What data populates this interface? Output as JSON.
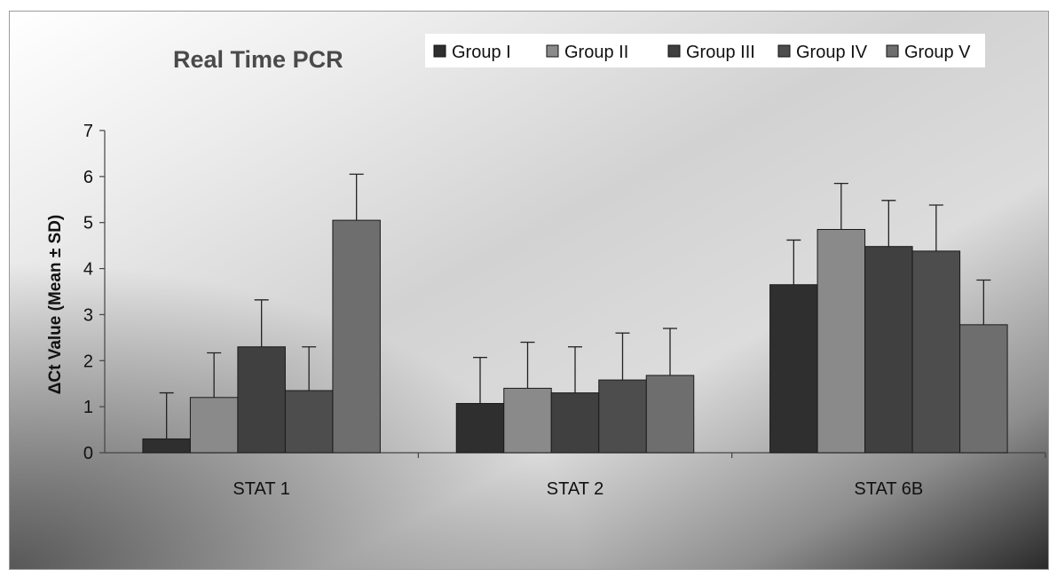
{
  "chart_data": {
    "type": "bar",
    "title": "Real Time PCR",
    "ylabel": "ΔCt Value (Mean ± SD)",
    "xlabel": "",
    "categories": [
      "STAT 1",
      "STAT 2",
      "STAT 6B"
    ],
    "ylim": [
      0,
      7
    ],
    "yticks": [
      0,
      1,
      2,
      3,
      4,
      5,
      6,
      7
    ],
    "grid": false,
    "legend_position": "top-right",
    "series": [
      {
        "name": "Group I",
        "color": "#2f2f2f",
        "values": [
          0.3,
          1.07,
          3.65
        ],
        "errors": [
          1.0,
          1.0,
          0.97
        ]
      },
      {
        "name": "Group II",
        "color": "#8a8a8a",
        "values": [
          1.2,
          1.4,
          4.85
        ],
        "errors": [
          0.97,
          1.0,
          1.0
        ]
      },
      {
        "name": "Group III",
        "color": "#404040",
        "values": [
          2.3,
          1.3,
          4.48
        ],
        "errors": [
          1.02,
          1.0,
          1.0
        ]
      },
      {
        "name": "Group IV",
        "color": "#4d4d4d",
        "values": [
          1.35,
          1.58,
          4.38
        ],
        "errors": [
          0.95,
          1.02,
          1.0
        ]
      },
      {
        "name": "Group V",
        "color": "#6e6e6e",
        "values": [
          5.05,
          1.68,
          2.78
        ],
        "errors": [
          1.0,
          1.02,
          0.97
        ]
      }
    ]
  }
}
